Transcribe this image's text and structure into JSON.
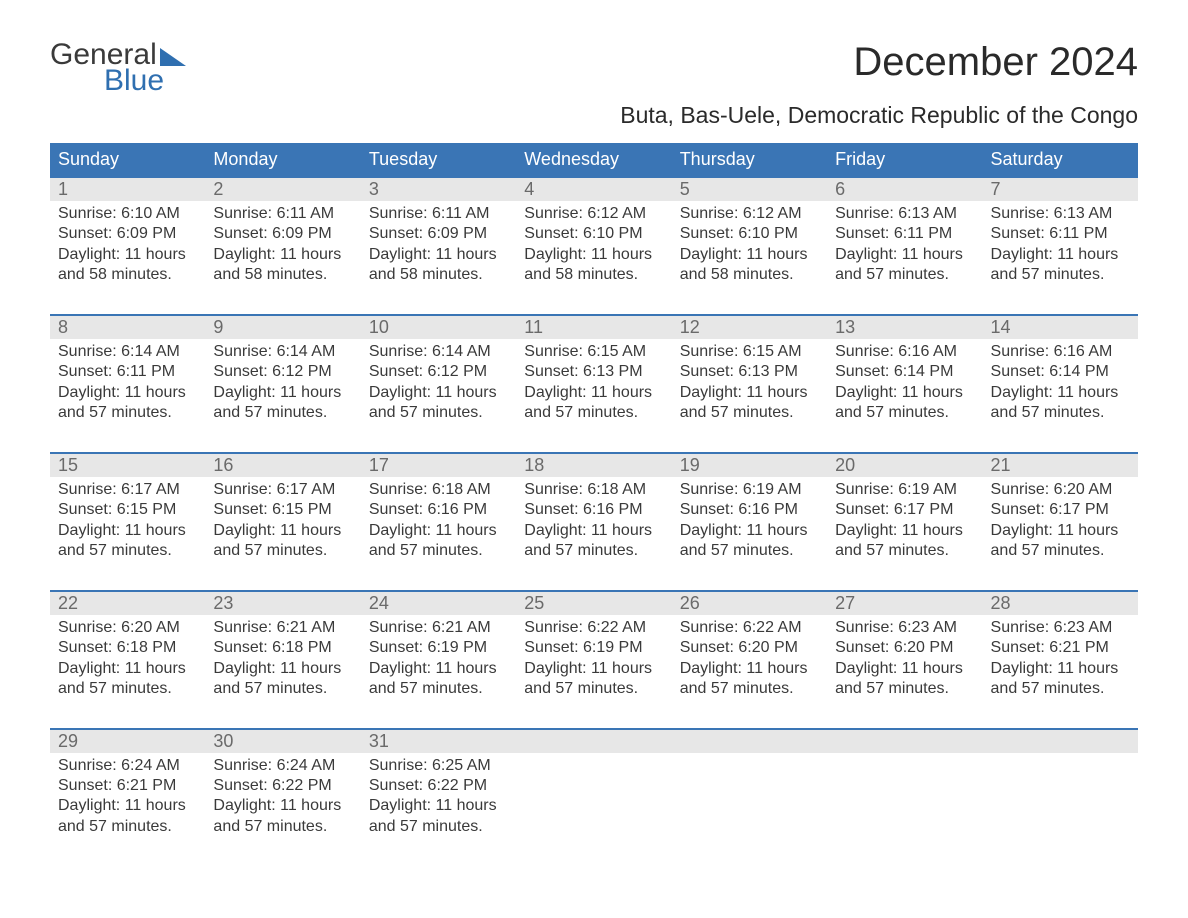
{
  "logo": {
    "top": "General",
    "bottom": "Blue"
  },
  "title": "December 2024",
  "subtitle": "Buta, Bas-Uele, Democratic Republic of the Congo",
  "colors": {
    "header_bg": "#3a75b5",
    "header_text": "#ffffff",
    "daynum_bg": "#e7e7e7",
    "daynum_text": "#6a6a6a",
    "body_text": "#3a3a3a",
    "accent": "#2f6fb0",
    "week_rule": "#3a75b5",
    "page_bg": "#ffffff"
  },
  "fonts": {
    "title_size_pt": 30,
    "subtitle_size_pt": 17,
    "dayhead_size_pt": 14,
    "daynum_size_pt": 14,
    "info_size_pt": 12,
    "family": "Arial"
  },
  "day_names": [
    "Sunday",
    "Monday",
    "Tuesday",
    "Wednesday",
    "Thursday",
    "Friday",
    "Saturday"
  ],
  "labels": {
    "sunrise_prefix": "Sunrise: ",
    "sunset_prefix": "Sunset: ",
    "daylight_prefix": "Daylight: "
  },
  "weeks": [
    [
      {
        "n": "1",
        "sr": "6:10 AM",
        "ss": "6:09 PM",
        "dl": "11 hours and 58 minutes."
      },
      {
        "n": "2",
        "sr": "6:11 AM",
        "ss": "6:09 PM",
        "dl": "11 hours and 58 minutes."
      },
      {
        "n": "3",
        "sr": "6:11 AM",
        "ss": "6:09 PM",
        "dl": "11 hours and 58 minutes."
      },
      {
        "n": "4",
        "sr": "6:12 AM",
        "ss": "6:10 PM",
        "dl": "11 hours and 58 minutes."
      },
      {
        "n": "5",
        "sr": "6:12 AM",
        "ss": "6:10 PM",
        "dl": "11 hours and 58 minutes."
      },
      {
        "n": "6",
        "sr": "6:13 AM",
        "ss": "6:11 PM",
        "dl": "11 hours and 57 minutes."
      },
      {
        "n": "7",
        "sr": "6:13 AM",
        "ss": "6:11 PM",
        "dl": "11 hours and 57 minutes."
      }
    ],
    [
      {
        "n": "8",
        "sr": "6:14 AM",
        "ss": "6:11 PM",
        "dl": "11 hours and 57 minutes."
      },
      {
        "n": "9",
        "sr": "6:14 AM",
        "ss": "6:12 PM",
        "dl": "11 hours and 57 minutes."
      },
      {
        "n": "10",
        "sr": "6:14 AM",
        "ss": "6:12 PM",
        "dl": "11 hours and 57 minutes."
      },
      {
        "n": "11",
        "sr": "6:15 AM",
        "ss": "6:13 PM",
        "dl": "11 hours and 57 minutes."
      },
      {
        "n": "12",
        "sr": "6:15 AM",
        "ss": "6:13 PM",
        "dl": "11 hours and 57 minutes."
      },
      {
        "n": "13",
        "sr": "6:16 AM",
        "ss": "6:14 PM",
        "dl": "11 hours and 57 minutes."
      },
      {
        "n": "14",
        "sr": "6:16 AM",
        "ss": "6:14 PM",
        "dl": "11 hours and 57 minutes."
      }
    ],
    [
      {
        "n": "15",
        "sr": "6:17 AM",
        "ss": "6:15 PM",
        "dl": "11 hours and 57 minutes."
      },
      {
        "n": "16",
        "sr": "6:17 AM",
        "ss": "6:15 PM",
        "dl": "11 hours and 57 minutes."
      },
      {
        "n": "17",
        "sr": "6:18 AM",
        "ss": "6:16 PM",
        "dl": "11 hours and 57 minutes."
      },
      {
        "n": "18",
        "sr": "6:18 AM",
        "ss": "6:16 PM",
        "dl": "11 hours and 57 minutes."
      },
      {
        "n": "19",
        "sr": "6:19 AM",
        "ss": "6:16 PM",
        "dl": "11 hours and 57 minutes."
      },
      {
        "n": "20",
        "sr": "6:19 AM",
        "ss": "6:17 PM",
        "dl": "11 hours and 57 minutes."
      },
      {
        "n": "21",
        "sr": "6:20 AM",
        "ss": "6:17 PM",
        "dl": "11 hours and 57 minutes."
      }
    ],
    [
      {
        "n": "22",
        "sr": "6:20 AM",
        "ss": "6:18 PM",
        "dl": "11 hours and 57 minutes."
      },
      {
        "n": "23",
        "sr": "6:21 AM",
        "ss": "6:18 PM",
        "dl": "11 hours and 57 minutes."
      },
      {
        "n": "24",
        "sr": "6:21 AM",
        "ss": "6:19 PM",
        "dl": "11 hours and 57 minutes."
      },
      {
        "n": "25",
        "sr": "6:22 AM",
        "ss": "6:19 PM",
        "dl": "11 hours and 57 minutes."
      },
      {
        "n": "26",
        "sr": "6:22 AM",
        "ss": "6:20 PM",
        "dl": "11 hours and 57 minutes."
      },
      {
        "n": "27",
        "sr": "6:23 AM",
        "ss": "6:20 PM",
        "dl": "11 hours and 57 minutes."
      },
      {
        "n": "28",
        "sr": "6:23 AM",
        "ss": "6:21 PM",
        "dl": "11 hours and 57 minutes."
      }
    ],
    [
      {
        "n": "29",
        "sr": "6:24 AM",
        "ss": "6:21 PM",
        "dl": "11 hours and 57 minutes."
      },
      {
        "n": "30",
        "sr": "6:24 AM",
        "ss": "6:22 PM",
        "dl": "11 hours and 57 minutes."
      },
      {
        "n": "31",
        "sr": "6:25 AM",
        "ss": "6:22 PM",
        "dl": "11 hours and 57 minutes."
      },
      null,
      null,
      null,
      null
    ]
  ]
}
